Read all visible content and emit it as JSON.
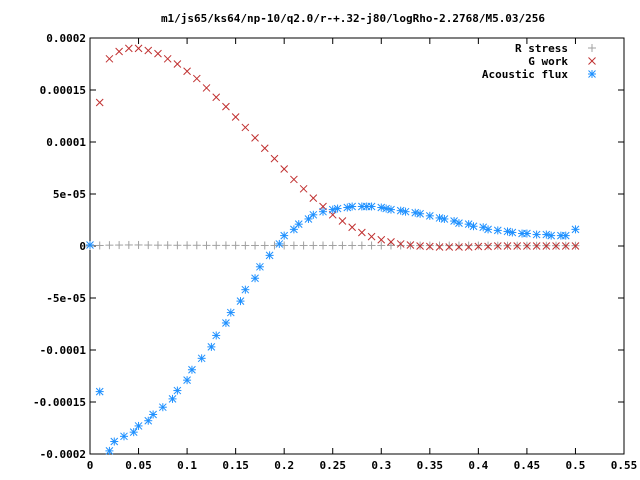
{
  "chart_data": {
    "type": "scatter",
    "title": "m1/js65/ks64/np-10/q2.0/r-+.32-j80/logRho-2.2768/M5.03/256",
    "xlabel": "",
    "ylabel": "",
    "xlim": [
      0,
      0.55
    ],
    "ylim": [
      -0.0002,
      0.0002
    ],
    "grid": false,
    "legend_position": "top-right",
    "x_ticks": [
      "0",
      "0.05",
      "0.1",
      "0.15",
      "0.2",
      "0.25",
      "0.3",
      "0.35",
      "0.4",
      "0.45",
      "0.5",
      "0.55"
    ],
    "x_tick_values": [
      0,
      0.05,
      0.1,
      0.15,
      0.2,
      0.25,
      0.3,
      0.35,
      0.4,
      0.45,
      0.5,
      0.55
    ],
    "y_ticks": [
      "-0.0002",
      "-0.00015",
      "-0.0001",
      "-5e-05",
      "0",
      "5e-05",
      "0.0001",
      "0.00015",
      "0.0002"
    ],
    "y_tick_values": [
      -0.0002,
      -0.00015,
      -0.0001,
      -5e-05,
      0,
      5e-05,
      0.0001,
      0.00015,
      0.0002
    ],
    "series": [
      {
        "name": "R stress",
        "color": "#a0a0a0",
        "marker": "plus",
        "x": [
          0.0,
          0.01,
          0.02,
          0.03,
          0.04,
          0.05,
          0.06,
          0.07,
          0.08,
          0.09,
          0.1,
          0.11,
          0.12,
          0.13,
          0.14,
          0.15,
          0.16,
          0.17,
          0.18,
          0.19,
          0.2,
          0.21,
          0.22,
          0.23,
          0.24,
          0.25,
          0.26,
          0.27,
          0.28,
          0.29,
          0.3,
          0.31,
          0.32,
          0.33,
          0.34,
          0.35,
          0.36,
          0.37,
          0.38,
          0.39,
          0.4,
          0.41,
          0.42,
          0.43,
          0.44,
          0.45,
          0.46,
          0.47,
          0.48,
          0.49,
          0.5
        ],
        "y": [
          0.0,
          5e-07,
          8e-07,
          9e-07,
          1e-06,
          1e-06,
          9e-07,
          8e-07,
          8e-07,
          7e-07,
          7e-07,
          7e-07,
          6e-07,
          6e-07,
          6e-07,
          6e-07,
          5e-07,
          5e-07,
          5e-07,
          5e-07,
          5e-07,
          5e-07,
          5e-07,
          5e-07,
          5e-07,
          5e-07,
          5e-07,
          5e-07,
          5e-07,
          5e-07,
          5e-07,
          5e-07,
          5e-07,
          5e-07,
          4e-07,
          4e-07,
          4e-07,
          4e-07,
          4e-07,
          4e-07,
          4e-07,
          4e-07,
          3e-07,
          3e-07,
          3e-07,
          3e-07,
          3e-07,
          3e-07,
          3e-07,
          3e-07,
          3e-07
        ]
      },
      {
        "name": "G work",
        "color": "#c03030",
        "marker": "cross",
        "x": [
          0.01,
          0.02,
          0.03,
          0.04,
          0.05,
          0.06,
          0.07,
          0.08,
          0.09,
          0.1,
          0.11,
          0.12,
          0.13,
          0.14,
          0.15,
          0.16,
          0.17,
          0.18,
          0.19,
          0.2,
          0.21,
          0.22,
          0.23,
          0.24,
          0.25,
          0.26,
          0.27,
          0.28,
          0.29,
          0.3,
          0.31,
          0.32,
          0.33,
          0.34,
          0.35,
          0.36,
          0.37,
          0.38,
          0.39,
          0.4,
          0.41,
          0.42,
          0.43,
          0.44,
          0.45,
          0.46,
          0.47,
          0.48,
          0.49,
          0.5
        ],
        "y": [
          0.000138,
          0.00018,
          0.000187,
          0.00019,
          0.00019,
          0.000188,
          0.000185,
          0.00018,
          0.000175,
          0.000168,
          0.000161,
          0.000152,
          0.000143,
          0.000134,
          0.000124,
          0.000114,
          0.000104,
          9.4e-05,
          8.4e-05,
          7.4e-05,
          6.4e-05,
          5.5e-05,
          4.6e-05,
          3.8e-05,
          3e-05,
          2.4e-05,
          1.8e-05,
          1.3e-05,
          9e-06,
          6e-06,
          4e-06,
          2e-06,
          1e-06,
          0.0,
          -5e-07,
          -1e-06,
          -1e-06,
          -1e-06,
          -1e-06,
          -5e-07,
          -5e-07,
          0.0,
          0.0,
          0.0,
          0.0,
          0.0,
          0.0,
          0.0,
          0.0,
          0.0
        ]
      },
      {
        "name": "Acoustic flux",
        "color": "#1e90ff",
        "marker": "star",
        "x": [
          0.0,
          0.01,
          0.02,
          0.025,
          0.035,
          0.045,
          0.05,
          0.06,
          0.065,
          0.075,
          0.085,
          0.09,
          0.1,
          0.105,
          0.115,
          0.125,
          0.13,
          0.14,
          0.145,
          0.155,
          0.16,
          0.17,
          0.175,
          0.185,
          0.195,
          0.2,
          0.21,
          0.215,
          0.225,
          0.23,
          0.24,
          0.25,
          0.255,
          0.265,
          0.27,
          0.28,
          0.285,
          0.29,
          0.3,
          0.305,
          0.31,
          0.32,
          0.325,
          0.335,
          0.34,
          0.35,
          0.36,
          0.365,
          0.375,
          0.38,
          0.39,
          0.395,
          0.405,
          0.41,
          0.42,
          0.43,
          0.435,
          0.445,
          0.45,
          0.46,
          0.47,
          0.475,
          0.485,
          0.49,
          0.5
        ],
        "y": [
          1e-06,
          -0.00014,
          -0.000197,
          -0.000188,
          -0.000183,
          -0.000179,
          -0.000173,
          -0.000168,
          -0.000162,
          -0.000155,
          -0.000147,
          -0.000139,
          -0.000129,
          -0.000119,
          -0.000108,
          -9.7e-05,
          -8.6e-05,
          -7.4e-05,
          -6.4e-05,
          -5.3e-05,
          -4.2e-05,
          -3.1e-05,
          -2e-05,
          -9e-06,
          2e-06,
          1e-05,
          1.6e-05,
          2.1e-05,
          2.6e-05,
          3e-05,
          3.3e-05,
          3.5e-05,
          3.6e-05,
          3.7e-05,
          3.8e-05,
          3.8e-05,
          3.8e-05,
          3.8e-05,
          3.7e-05,
          3.6e-05,
          3.5e-05,
          3.4e-05,
          3.3e-05,
          3.2e-05,
          3.1e-05,
          2.9e-05,
          2.7e-05,
          2.6e-05,
          2.4e-05,
          2.2e-05,
          2.1e-05,
          1.9e-05,
          1.8e-05,
          1.6e-05,
          1.5e-05,
          1.4e-05,
          1.3e-05,
          1.2e-05,
          1.2e-05,
          1.1e-05,
          1.1e-05,
          1e-05,
          1e-05,
          1e-05,
          1.6e-05
        ]
      }
    ]
  }
}
